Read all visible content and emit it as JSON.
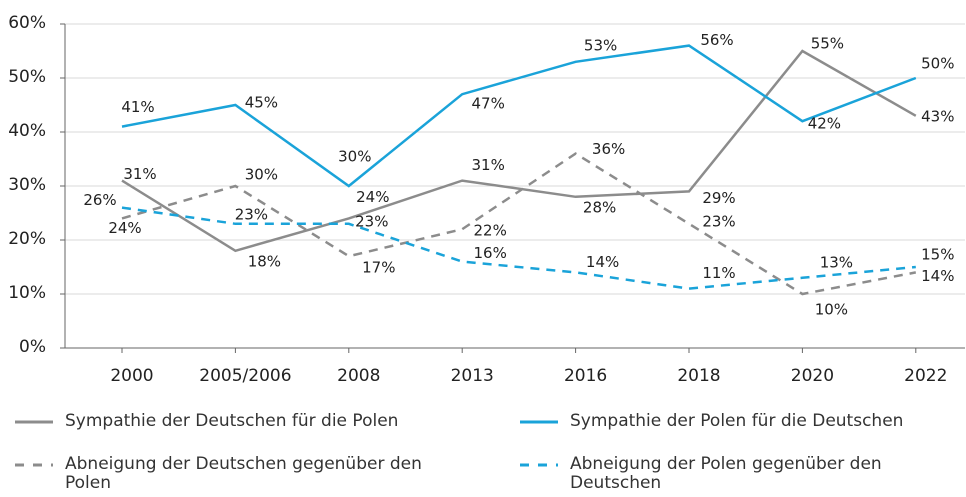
{
  "chart_data": {
    "type": "line",
    "categories": [
      "2000",
      "2005/2006",
      "2008",
      "2013",
      "2016",
      "2018",
      "2020",
      "2022"
    ],
    "series": [
      {
        "name": "Sympathie der Deutschen für die Polen",
        "color": "#8c8c8c",
        "dashed": false,
        "values": [
          31,
          18,
          24,
          31,
          28,
          29,
          55,
          43
        ],
        "value_labels": [
          "31%",
          "18%",
          "24%",
          "31%",
          "28%",
          "29%",
          "55%",
          "43%"
        ]
      },
      {
        "name": "Sympathie der Polen für die Deutschen",
        "color": "#1aa3d9",
        "dashed": false,
        "values": [
          41,
          45,
          30,
          47,
          53,
          56,
          42,
          50
        ],
        "value_labels": [
          "41%",
          "45%",
          "30%",
          "47%",
          "53%",
          "56%",
          "42%",
          "50%"
        ]
      },
      {
        "name": "Abneigung der Deutschen gegenüber den Polen",
        "color": "#8c8c8c",
        "dashed": true,
        "values": [
          24,
          30,
          17,
          22,
          36,
          23,
          10,
          14
        ],
        "value_labels": [
          "24%",
          "30%",
          "17%",
          "22%",
          "36%",
          "23%",
          "10%",
          "14%"
        ]
      },
      {
        "name": "Abneigung der Polen gegenüber den Deutschen",
        "color": "#1aa3d9",
        "dashed": true,
        "values": [
          26,
          23,
          23,
          16,
          14,
          11,
          13,
          15
        ],
        "value_labels": [
          "26%",
          "23%",
          "23%",
          "16%",
          "14%",
          "11%",
          "13%",
          "15%"
        ]
      }
    ],
    "ylim": [
      0,
      60
    ],
    "yticks": [
      {
        "value": 0,
        "label": "0%"
      },
      {
        "value": 10,
        "label": "10%"
      },
      {
        "value": 20,
        "label": "20%"
      },
      {
        "value": 30,
        "label": "30%"
      },
      {
        "value": 40,
        "label": "40%"
      },
      {
        "value": 50,
        "label": "50%"
      },
      {
        "value": 60,
        "label": "60%"
      }
    ],
    "grid": true
  }
}
